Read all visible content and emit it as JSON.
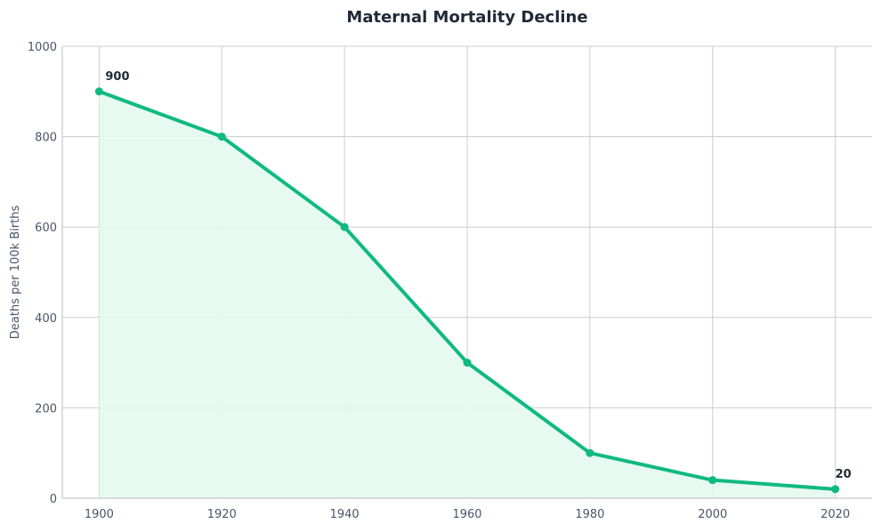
{
  "chart_data": {
    "type": "area",
    "title": "Maternal Mortality Decline",
    "xlabel": "",
    "ylabel": "Deaths per 100k Births",
    "x": [
      1900,
      1920,
      1940,
      1960,
      1980,
      2000,
      2020
    ],
    "series": [
      {
        "name": "Maternal Mortality",
        "values": [
          900,
          800,
          600,
          300,
          100,
          40,
          20
        ]
      }
    ],
    "xlim": [
      1894,
      2026
    ],
    "ylim": [
      0,
      1000
    ],
    "xticks": [
      1900,
      1920,
      1940,
      1960,
      1980,
      2000,
      2020
    ],
    "yticks": [
      0,
      200,
      400,
      600,
      800,
      1000
    ],
    "annotations": [
      {
        "x": 1900,
        "y": 900,
        "text": "900"
      },
      {
        "x": 2020,
        "y": 20,
        "text": "20"
      }
    ],
    "grid": true,
    "colors": {
      "line": "#10b981",
      "fill": "#e3faef",
      "grid": "#cccccc"
    }
  }
}
